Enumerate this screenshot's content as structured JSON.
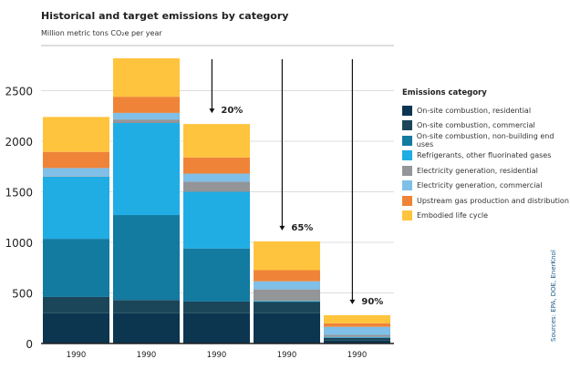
{
  "chart_data": {
    "type": "bar",
    "stacked": true,
    "title": "Historical and target emissions by category",
    "subtitle": "Million metric tons CO₂e per year",
    "categories": [
      "1990",
      "1990",
      "1990",
      "1990",
      "1990"
    ],
    "ylim": [
      0,
      2850
    ],
    "yticks": [
      0,
      500,
      1000,
      1500,
      2000,
      2500
    ],
    "grid": true,
    "legend_title": "Emissions category",
    "legend_position": "right",
    "series": [
      {
        "name": "On-site combustion, residential",
        "color": "#0c3550",
        "values": [
          300,
          300,
          300,
          300,
          30
        ]
      },
      {
        "name": "On-site combustion, commercial",
        "color": "#1b4659",
        "values": [
          160,
          130,
          115,
          110,
          25
        ]
      },
      {
        "name": "On-site combustion, non-building end uses",
        "color": "#137aa0",
        "values": [
          575,
          840,
          525,
          5,
          5
        ]
      },
      {
        "name": "Refrigerants, other fluorinated gases",
        "color": "#1fade4",
        "values": [
          615,
          910,
          560,
          5,
          5
        ]
      },
      {
        "name": "Electricity generation, residential",
        "color": "#939598",
        "values": [
          5,
          35,
          100,
          115,
          20
        ]
      },
      {
        "name": "Electricity generation, commercial",
        "color": "#7fbfe8",
        "values": [
          80,
          65,
          80,
          80,
          80
        ]
      },
      {
        "name": "Upstream gas production and distribution",
        "color": "#ef8439",
        "values": [
          160,
          160,
          160,
          110,
          35
        ]
      },
      {
        "name": "Embodied life cycle",
        "color": "#ffc43d",
        "values": [
          345,
          380,
          330,
          285,
          80
        ]
      }
    ],
    "annotations": [
      {
        "bar_index": 2,
        "label": "20%"
      },
      {
        "bar_index": 3,
        "label": "65%"
      },
      {
        "bar_index": 4,
        "label": "90%"
      }
    ],
    "source": "Sources: EPA, DOE, EnerKnol"
  }
}
